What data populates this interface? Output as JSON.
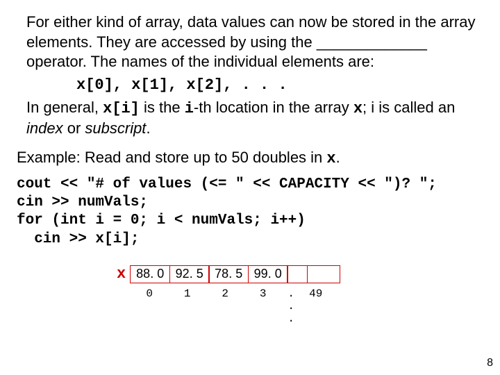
{
  "para1": "For either kind of array, data values can now be stored in the array elements.  They are accessed by using the _____________ operator.  The names of the individual elements are:",
  "array_example": "x[0], x[1], x[2], . . .",
  "para2_pre": "In general, ",
  "para2_xi": "x[i]",
  "para2_mid1": " is the ",
  "para2_i": "i",
  "para2_mid2": "-th location in the array ",
  "para2_x": "x",
  "para2_semi": "; i is called an ",
  "para2_index": "index",
  "para2_or": " or ",
  "para2_sub": "subscript",
  "para2_dot": ".",
  "example_head_pre": "Example: Read and store up to 50 doubles in ",
  "example_head_x": "x",
  "example_head_dot": ".",
  "code": "cout << \"# of values (<= \" << CAPACITY << \")? \";\ncin >> numVals;\nfor (int i = 0; i < numVals; i++)\n  cin >> x[i];",
  "x_label": "x",
  "cells": [
    "88. 0",
    "92. 5",
    "78. 5",
    "99. 0"
  ],
  "indices": [
    "0",
    "1",
    "2",
    "3"
  ],
  "idx_dots": ". . .",
  "idx_last": "49",
  "page_num": "8",
  "colors": {
    "red": "#cc0000",
    "black": "#000000",
    "bg": "#ffffff"
  }
}
